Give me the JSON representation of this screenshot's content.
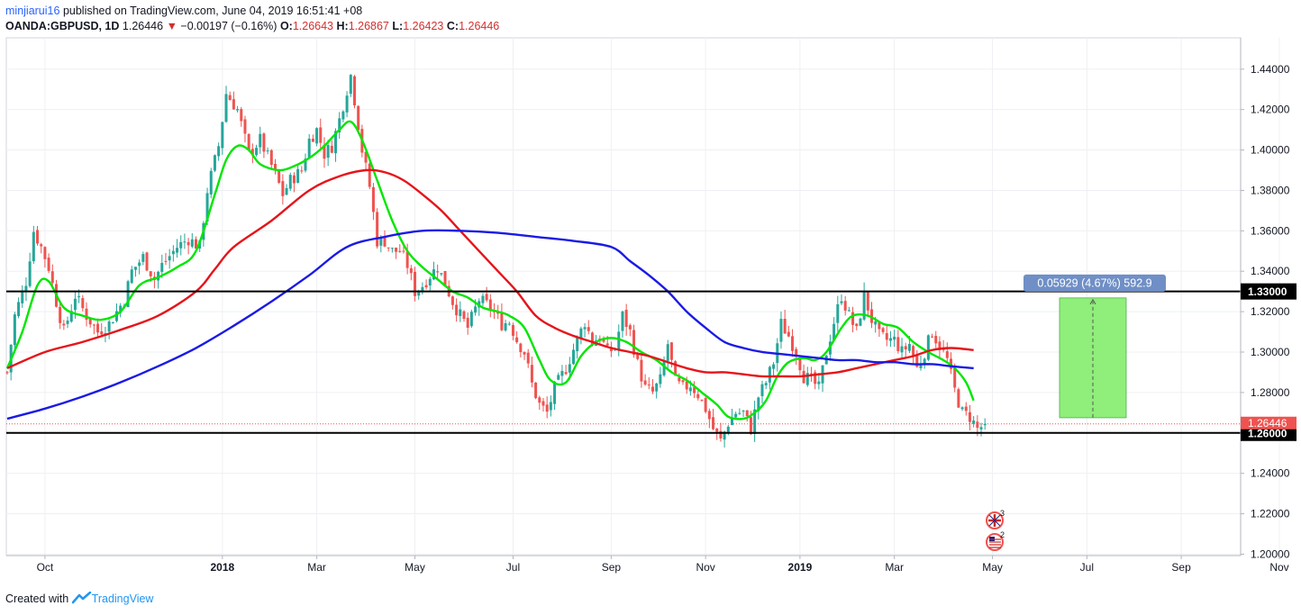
{
  "header": {
    "author": "minjiarui16",
    "published_text": "published on TradingView.com, June 04, 2019 16:51:41 +08",
    "symbol": "OANDA:GBPUSD, 1D",
    "last": "1.26446",
    "change": "−0.00197 (−0.16%)",
    "o_label": "O:",
    "o_value": "1.26643",
    "h_label": "H:",
    "h_value": "1.26867",
    "l_label": "L:",
    "l_value": "1.26423",
    "c_label": "C:",
    "c_value": "1.26446"
  },
  "footer": {
    "created_with": "Created with",
    "brand": "TradingView"
  },
  "colors": {
    "up": "#26a69a",
    "down": "#ef5350",
    "ma_fast": "#00e600",
    "ma_mid": "#e6141a",
    "ma_slow": "#1a1ae6",
    "level_line": "#000000",
    "measure_fill": "#90ee7a",
    "measure_label": "#6f8fc6"
  },
  "chart_data": {
    "type": "candlestick",
    "symbol": "OANDA:GBPUSD",
    "interval": "1D",
    "x_tick_labels": [
      "Oct",
      "2018",
      "Mar",
      "May",
      "Jul",
      "Sep",
      "Nov",
      "2019",
      "Mar",
      "May",
      "Jul",
      "Sep",
      "Nov"
    ],
    "y_tick_labels": [
      "1.44000",
      "1.42000",
      "1.40000",
      "1.38000",
      "1.36000",
      "1.34000",
      "1.32000",
      "1.30000",
      "1.28000",
      "1.26000",
      "1.24000",
      "1.22000",
      "1.20000"
    ],
    "ylim": [
      1.1993,
      1.4555
    ],
    "price_path": [
      [
        0,
        1.29
      ],
      [
        2,
        1.318
      ],
      [
        5,
        1.335
      ],
      [
        7,
        1.36
      ],
      [
        9,
        1.352
      ],
      [
        11,
        1.342
      ],
      [
        13,
        1.325
      ],
      [
        15,
        1.31
      ],
      [
        18,
        1.328
      ],
      [
        21,
        1.318
      ],
      [
        24,
        1.31
      ],
      [
        27,
        1.314
      ],
      [
        31,
        1.326
      ],
      [
        33,
        1.34
      ],
      [
        36,
        1.347
      ],
      [
        39,
        1.336
      ],
      [
        41,
        1.343
      ],
      [
        45,
        1.352
      ],
      [
        48,
        1.356
      ],
      [
        51,
        1.352
      ],
      [
        53,
        1.38
      ],
      [
        56,
        1.402
      ],
      [
        58,
        1.428
      ],
      [
        61,
        1.42
      ],
      [
        64,
        1.398
      ],
      [
        67,
        1.405
      ],
      [
        71,
        1.388
      ],
      [
        73,
        1.378
      ],
      [
        75,
        1.385
      ],
      [
        78,
        1.39
      ],
      [
        80,
        1.405
      ],
      [
        82,
        1.41
      ],
      [
        84,
        1.398
      ],
      [
        86,
        1.402
      ],
      [
        88,
        1.415
      ],
      [
        90,
        1.43
      ],
      [
        91,
        1.437
      ],
      [
        92,
        1.425
      ],
      [
        94,
        1.4
      ],
      [
        96,
        1.382
      ],
      [
        98,
        1.355
      ],
      [
        100,
        1.355
      ],
      [
        102,
        1.35
      ],
      [
        104,
        1.35
      ],
      [
        106,
        1.343
      ],
      [
        108,
        1.33
      ],
      [
        110,
        1.333
      ],
      [
        112,
        1.338
      ],
      [
        114,
        1.342
      ],
      [
        116,
        1.334
      ],
      [
        118,
        1.325
      ],
      [
        120,
        1.318
      ],
      [
        122,
        1.312
      ],
      [
        125,
        1.326
      ],
      [
        128,
        1.322
      ],
      [
        131,
        1.314
      ],
      [
        133,
        1.315
      ],
      [
        135,
        1.306
      ],
      [
        137,
        1.3
      ],
      [
        139,
        1.284
      ],
      [
        141,
        1.274
      ],
      [
        143,
        1.27
      ],
      [
        145,
        1.282
      ],
      [
        148,
        1.292
      ],
      [
        151,
        1.306
      ],
      [
        153,
        1.315
      ],
      [
        155,
        1.305
      ],
      [
        157,
        1.308
      ],
      [
        159,
        1.3
      ],
      [
        161,
        1.302
      ],
      [
        163,
        1.318
      ],
      [
        165,
        1.31
      ],
      [
        167,
        1.294
      ],
      [
        169,
        1.282
      ],
      [
        171,
        1.28
      ],
      [
        173,
        1.286
      ],
      [
        175,
        1.304
      ],
      [
        177,
        1.285
      ],
      [
        179,
        1.282
      ],
      [
        181,
        1.284
      ],
      [
        183,
        1.279
      ],
      [
        185,
        1.272
      ],
      [
        187,
        1.262
      ],
      [
        189,
        1.256
      ],
      [
        191,
        1.265
      ],
      [
        193,
        1.27
      ],
      [
        195,
        1.27
      ],
      [
        197,
        1.262
      ],
      [
        199,
        1.278
      ],
      [
        201,
        1.285
      ],
      [
        203,
        1.295
      ],
      [
        205,
        1.314
      ],
      [
        207,
        1.308
      ],
      [
        209,
        1.3
      ],
      [
        211,
        1.288
      ],
      [
        213,
        1.286
      ],
      [
        215,
        1.282
      ],
      [
        217,
        1.3
      ],
      [
        219,
        1.315
      ],
      [
        221,
        1.328
      ],
      [
        223,
        1.318
      ],
      [
        225,
        1.31
      ],
      [
        227,
        1.328
      ],
      [
        229,
        1.316
      ],
      [
        231,
        1.308
      ],
      [
        233,
        1.306
      ],
      [
        235,
        1.306
      ],
      [
        237,
        1.3
      ],
      [
        239,
        1.304
      ],
      [
        241,
        1.292
      ],
      [
        243,
        1.3
      ],
      [
        245,
        1.31
      ],
      [
        247,
        1.303
      ],
      [
        249,
        1.296
      ],
      [
        251,
        1.281
      ],
      [
        253,
        1.27
      ],
      [
        255,
        1.268
      ],
      [
        257,
        1.262
      ],
      [
        259,
        1.264
      ]
    ],
    "moving_averages": [
      {
        "name": "",
        "color_key": "ma_fast",
        "points": [
          [
            0,
            1.292
          ],
          [
            4,
            1.31
          ],
          [
            8,
            1.333
          ],
          [
            11,
            1.335
          ],
          [
            15,
            1.322
          ],
          [
            20,
            1.318
          ],
          [
            25,
            1.316
          ],
          [
            30,
            1.32
          ],
          [
            35,
            1.333
          ],
          [
            40,
            1.337
          ],
          [
            45,
            1.342
          ],
          [
            50,
            1.35
          ],
          [
            55,
            1.378
          ],
          [
            58,
            1.395
          ],
          [
            61,
            1.402
          ],
          [
            64,
            1.4
          ],
          [
            67,
            1.393
          ],
          [
            72,
            1.39
          ],
          [
            76,
            1.392
          ],
          [
            80,
            1.396
          ],
          [
            84,
            1.402
          ],
          [
            88,
            1.41
          ],
          [
            91,
            1.414
          ],
          [
            94,
            1.405
          ],
          [
            98,
            1.385
          ],
          [
            102,
            1.365
          ],
          [
            106,
            1.35
          ],
          [
            110,
            1.342
          ],
          [
            114,
            1.336
          ],
          [
            118,
            1.33
          ],
          [
            122,
            1.327
          ],
          [
            126,
            1.322
          ],
          [
            130,
            1.32
          ],
          [
            133,
            1.318
          ],
          [
            137,
            1.312
          ],
          [
            141,
            1.296
          ],
          [
            144,
            1.286
          ],
          [
            148,
            1.285
          ],
          [
            152,
            1.298
          ],
          [
            156,
            1.305
          ],
          [
            160,
            1.307
          ],
          [
            164,
            1.305
          ],
          [
            168,
            1.3
          ],
          [
            172,
            1.296
          ],
          [
            176,
            1.29
          ],
          [
            180,
            1.286
          ],
          [
            184,
            1.28
          ],
          [
            188,
            1.274
          ],
          [
            191,
            1.268
          ],
          [
            195,
            1.267
          ],
          [
            198,
            1.27
          ],
          [
            201,
            1.276
          ],
          [
            204,
            1.288
          ],
          [
            207,
            1.295
          ],
          [
            211,
            1.297
          ],
          [
            214,
            1.296
          ],
          [
            217,
            1.3
          ],
          [
            221,
            1.312
          ],
          [
            224,
            1.318
          ],
          [
            228,
            1.318
          ],
          [
            232,
            1.314
          ],
          [
            236,
            1.312
          ],
          [
            240,
            1.305
          ],
          [
            244,
            1.3
          ],
          [
            248,
            1.296
          ],
          [
            251,
            1.292
          ],
          [
            254,
            1.285
          ],
          [
            256,
            1.276
          ]
        ]
      },
      {
        "name": "",
        "color_key": "ma_mid",
        "points": [
          [
            0,
            1.292
          ],
          [
            10,
            1.3
          ],
          [
            20,
            1.305
          ],
          [
            30,
            1.311
          ],
          [
            40,
            1.318
          ],
          [
            50,
            1.33
          ],
          [
            55,
            1.341
          ],
          [
            60,
            1.352
          ],
          [
            70,
            1.365
          ],
          [
            80,
            1.38
          ],
          [
            88,
            1.387
          ],
          [
            95,
            1.39
          ],
          [
            100,
            1.389
          ],
          [
            105,
            1.385
          ],
          [
            110,
            1.378
          ],
          [
            115,
            1.37
          ],
          [
            120,
            1.36
          ],
          [
            125,
            1.35
          ],
          [
            130,
            1.34
          ],
          [
            135,
            1.33
          ],
          [
            140,
            1.318
          ],
          [
            145,
            1.312
          ],
          [
            150,
            1.308
          ],
          [
            155,
            1.305
          ],
          [
            160,
            1.302
          ],
          [
            165,
            1.3
          ],
          [
            170,
            1.298
          ],
          [
            175,
            1.295
          ],
          [
            180,
            1.292
          ],
          [
            185,
            1.29
          ],
          [
            190,
            1.29
          ],
          [
            195,
            1.289
          ],
          [
            200,
            1.288
          ],
          [
            205,
            1.288
          ],
          [
            210,
            1.288
          ],
          [
            215,
            1.289
          ],
          [
            220,
            1.29
          ],
          [
            225,
            1.292
          ],
          [
            230,
            1.294
          ],
          [
            235,
            1.296
          ],
          [
            240,
            1.298
          ],
          [
            245,
            1.301
          ],
          [
            250,
            1.302
          ],
          [
            256,
            1.301
          ]
        ]
      },
      {
        "name": "",
        "color_key": "ma_slow",
        "points": [
          [
            0,
            1.267
          ],
          [
            10,
            1.272
          ],
          [
            20,
            1.278
          ],
          [
            30,
            1.285
          ],
          [
            40,
            1.293
          ],
          [
            50,
            1.302
          ],
          [
            60,
            1.313
          ],
          [
            70,
            1.325
          ],
          [
            80,
            1.338
          ],
          [
            90,
            1.352
          ],
          [
            100,
            1.357
          ],
          [
            110,
            1.36
          ],
          [
            120,
            1.36
          ],
          [
            130,
            1.359
          ],
          [
            140,
            1.357
          ],
          [
            150,
            1.355
          ],
          [
            160,
            1.352
          ],
          [
            165,
            1.345
          ],
          [
            170,
            1.338
          ],
          [
            175,
            1.33
          ],
          [
            180,
            1.32
          ],
          [
            185,
            1.312
          ],
          [
            190,
            1.305
          ],
          [
            195,
            1.302
          ],
          [
            200,
            1.3
          ],
          [
            205,
            1.299
          ],
          [
            210,
            1.298
          ],
          [
            215,
            1.297
          ],
          [
            220,
            1.296
          ],
          [
            225,
            1.296
          ],
          [
            230,
            1.295
          ],
          [
            235,
            1.295
          ],
          [
            240,
            1.294
          ],
          [
            245,
            1.294
          ],
          [
            250,
            1.293
          ],
          [
            256,
            1.292
          ]
        ]
      }
    ],
    "horizontal_levels": [
      {
        "price": 1.33,
        "label": "1.33000"
      },
      {
        "price": 1.26,
        "label": "1.26000"
      }
    ],
    "last_price": {
      "price": 1.26446,
      "label": "1.26446"
    },
    "measure_tool": {
      "from_price": 1.2675,
      "to_price": 1.3268,
      "label": "0.05929 (4.67%) 592.9"
    },
    "event_badges": [
      "3",
      "2"
    ]
  }
}
